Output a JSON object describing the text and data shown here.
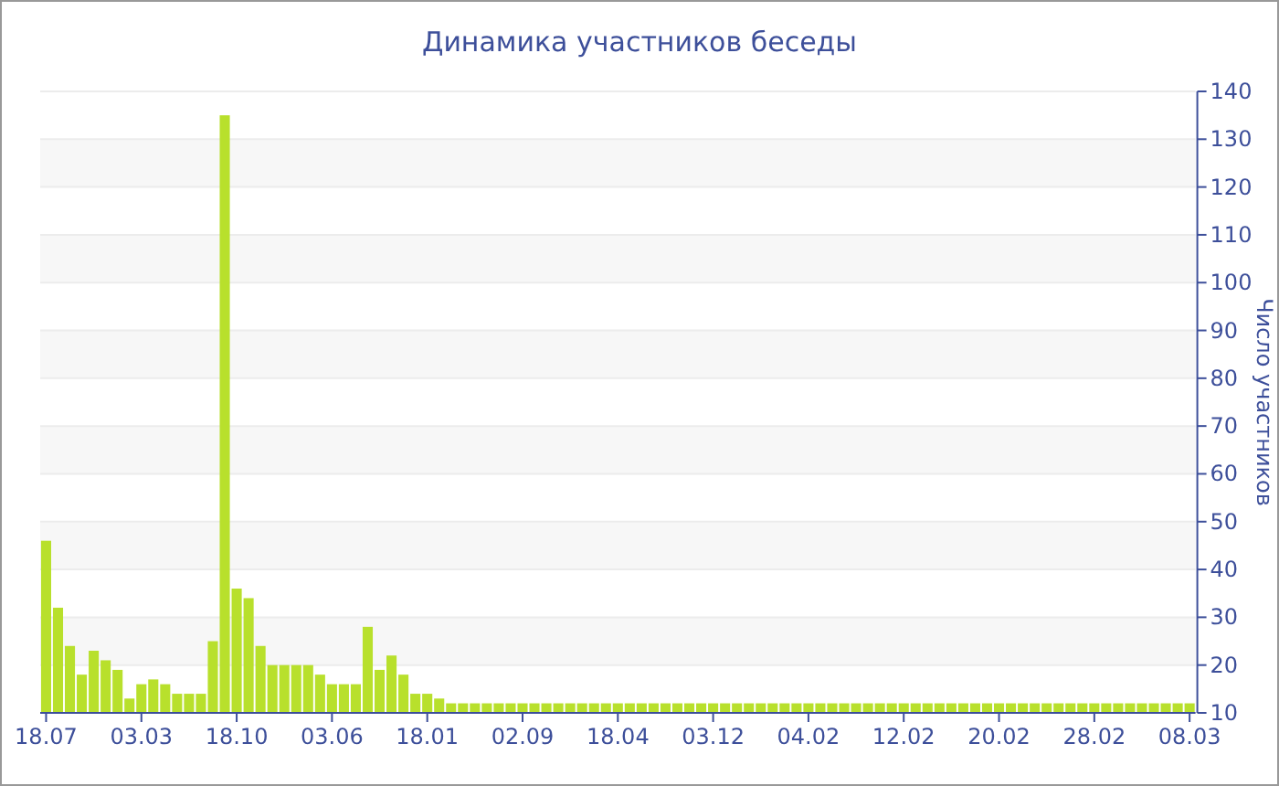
{
  "chart_data": {
    "type": "bar",
    "title": "Динамика участников беседы",
    "ylabel": "Число участников",
    "categories": [
      "18.07",
      null,
      null,
      null,
      null,
      null,
      null,
      null,
      "03.03",
      null,
      null,
      null,
      null,
      null,
      null,
      null,
      "18.10",
      null,
      null,
      null,
      null,
      null,
      null,
      null,
      "03.06",
      null,
      null,
      null,
      null,
      null,
      null,
      null,
      "18.01",
      null,
      null,
      null,
      null,
      null,
      null,
      null,
      "02.09",
      null,
      null,
      null,
      null,
      null,
      null,
      null,
      "18.04",
      null,
      null,
      null,
      null,
      null,
      null,
      null,
      "03.12",
      null,
      null,
      null,
      null,
      null,
      null,
      null,
      "04.02",
      null,
      null,
      null,
      null,
      null,
      null,
      null,
      "12.02",
      null,
      null,
      null,
      null,
      null,
      null,
      null,
      "20.02",
      null,
      null,
      null,
      null,
      null,
      null,
      null,
      "28.02",
      null,
      null,
      null,
      null,
      null,
      null,
      null,
      "08.03"
    ],
    "values": [
      46,
      32,
      24,
      18,
      23,
      21,
      19,
      13,
      16,
      17,
      16,
      14,
      14,
      14,
      25,
      135,
      36,
      34,
      24,
      20,
      20,
      20,
      20,
      18,
      16,
      16,
      16,
      28,
      19,
      22,
      18,
      14,
      14,
      13,
      12,
      12,
      12,
      12,
      12,
      12,
      12,
      12,
      12,
      12,
      12,
      12,
      12,
      12,
      12,
      12,
      12,
      12,
      12,
      12,
      12,
      12,
      12,
      12,
      12,
      12,
      12,
      12,
      12,
      12,
      12,
      12,
      12,
      12,
      12,
      12,
      12,
      12,
      12,
      12,
      12,
      12,
      12,
      12,
      12,
      12,
      12,
      12,
      12,
      12,
      12,
      12,
      12,
      12,
      12,
      12,
      12,
      12,
      12,
      12,
      12,
      12,
      12
    ],
    "color": "#b8e02c",
    "ylim": [
      10,
      140
    ],
    "yticks": [
      10,
      20,
      30,
      40,
      50,
      60,
      70,
      80,
      90,
      100,
      110,
      120,
      130,
      140
    ],
    "grid": "y"
  }
}
